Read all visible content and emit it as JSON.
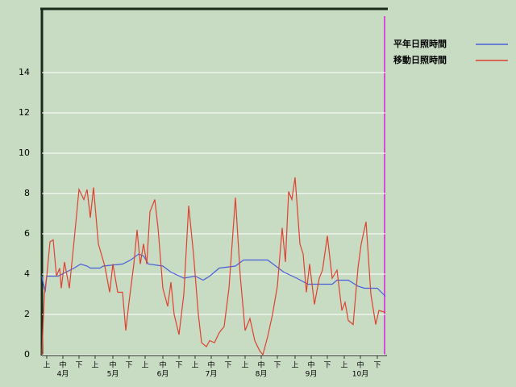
{
  "chart_data": {
    "type": "line",
    "legend": "top-right",
    "grid": true,
    "xlim": [
      0,
      213
    ],
    "ylim": [
      0,
      17.2
    ],
    "yticks": [
      0,
      2,
      4,
      6,
      8,
      10,
      12,
      14
    ],
    "xticks": [
      {
        "value": 3,
        "label": "上"
      },
      {
        "value": 13,
        "label": "中"
      },
      {
        "value": 23,
        "label": "下"
      },
      {
        "value": 33,
        "label": "上"
      },
      {
        "value": 44,
        "label": "中"
      },
      {
        "value": 54,
        "label": "下"
      },
      {
        "value": 64,
        "label": "上"
      },
      {
        "value": 75,
        "label": "中"
      },
      {
        "value": 85,
        "label": "下"
      },
      {
        "value": 95,
        "label": "上"
      },
      {
        "value": 105,
        "label": "中"
      },
      {
        "value": 115.5,
        "label": "下"
      },
      {
        "value": 126,
        "label": "上"
      },
      {
        "value": 136,
        "label": "中"
      },
      {
        "value": 146,
        "label": "下"
      },
      {
        "value": 157,
        "label": "上"
      },
      {
        "value": 167,
        "label": "中"
      },
      {
        "value": 177,
        "label": "下"
      },
      {
        "value": 187.5,
        "label": "上"
      },
      {
        "value": 197.5,
        "label": "中"
      },
      {
        "value": 208,
        "label": "下"
      }
    ],
    "month_ticks": [
      {
        "value": 13,
        "label": "4月"
      },
      {
        "value": 44,
        "label": "5月"
      },
      {
        "value": 75,
        "label": "6月"
      },
      {
        "value": 105,
        "label": "7月"
      },
      {
        "value": 136,
        "label": "8月"
      },
      {
        "value": 167,
        "label": "9月"
      },
      {
        "value": 197.5,
        "label": "10月"
      }
    ],
    "series": [
      {
        "name": "平年日照時間",
        "color": "#4a5fd8",
        "x": [
          0,
          2,
          3,
          10,
          15,
          20,
          24,
          28,
          30,
          36,
          38,
          50,
          55,
          60,
          63,
          66,
          75,
          80,
          88,
          95,
          100,
          104,
          110,
          120,
          125,
          140,
          145,
          150,
          158,
          165,
          180,
          183,
          190,
          196,
          200,
          208,
          213
        ],
        "values": [
          3.9,
          3.1,
          3.9,
          3.9,
          4.1,
          4.3,
          4.5,
          4.4,
          4.3,
          4.3,
          4.4,
          4.5,
          4.7,
          5.0,
          4.9,
          4.5,
          4.4,
          4.1,
          3.8,
          3.9,
          3.7,
          3.9,
          4.3,
          4.4,
          4.7,
          4.7,
          4.4,
          4.1,
          3.8,
          3.5,
          3.5,
          3.7,
          3.7,
          3.4,
          3.3,
          3.3,
          2.9
        ]
      },
      {
        "name": "移動日照時間",
        "color": "#e04030",
        "x": [
          0,
          1.5,
          3,
          5,
          7,
          9,
          11,
          12,
          14,
          17,
          20,
          23,
          26,
          28,
          30,
          32,
          35,
          39,
          42,
          44,
          47,
          50,
          52,
          54,
          57,
          59,
          61,
          63,
          65,
          67,
          70,
          72,
          75,
          78,
          80,
          82,
          85,
          88,
          91,
          94,
          97,
          99,
          102,
          104,
          107,
          110,
          113,
          116,
          120,
          123,
          126,
          129,
          132,
          135,
          137,
          140,
          143,
          146,
          149,
          151,
          153,
          155,
          157,
          160,
          162,
          164,
          166,
          169,
          172,
          174,
          177,
          180,
          183,
          186,
          188,
          190,
          193,
          196,
          198,
          201,
          204,
          207,
          209,
          213
        ],
        "values": [
          0,
          3.0,
          3.9,
          5.6,
          5.7,
          3.9,
          4.3,
          3.3,
          4.6,
          3.3,
          5.7,
          8.2,
          7.7,
          8.2,
          6.8,
          8.3,
          5.5,
          4.4,
          3.1,
          4.5,
          3.1,
          3.1,
          1.2,
          2.6,
          4.5,
          6.2,
          4.5,
          5.5,
          4.5,
          7.1,
          7.7,
          6.3,
          3.3,
          2.4,
          3.6,
          2.0,
          1.0,
          3.0,
          7.4,
          5.0,
          2.0,
          0.6,
          0.4,
          0.7,
          0.6,
          1.1,
          1.4,
          3.3,
          7.8,
          3.9,
          1.2,
          1.8,
          0.7,
          0.2,
          0.0,
          0.9,
          2.0,
          3.4,
          6.3,
          4.6,
          8.1,
          7.7,
          8.8,
          5.5,
          5.0,
          3.1,
          4.5,
          2.5,
          3.8,
          4.2,
          5.9,
          3.8,
          4.2,
          2.2,
          2.6,
          1.7,
          1.5,
          4.3,
          5.5,
          6.6,
          3.0,
          1.5,
          2.2,
          2.1
        ]
      }
    ]
  }
}
